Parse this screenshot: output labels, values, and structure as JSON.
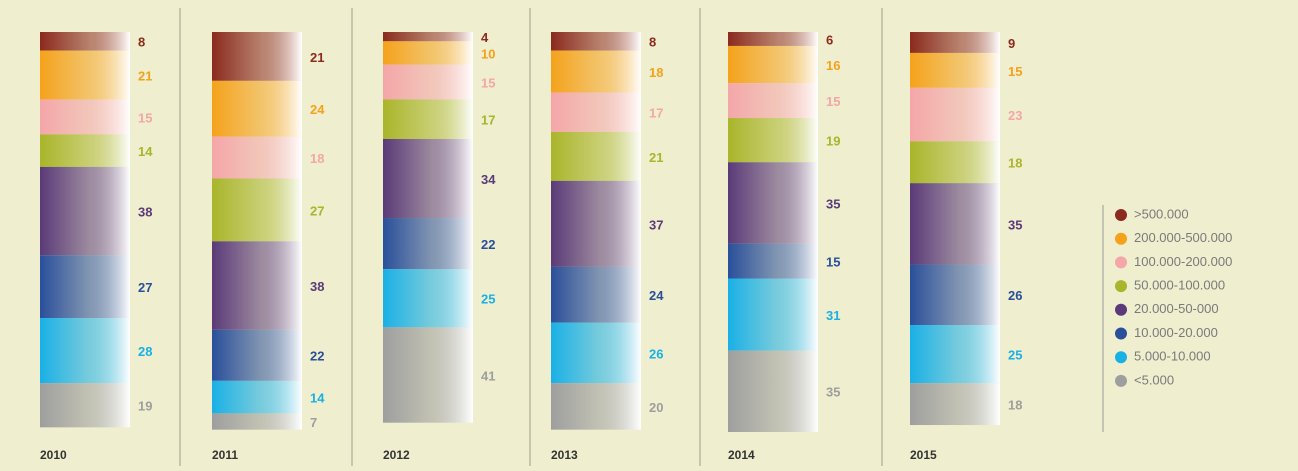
{
  "chart_data": {
    "type": "stacked_bar",
    "categories": [
      "2010",
      "2011",
      "2012",
      "2013",
      "2014",
      "2015"
    ],
    "series": [
      {
        "name": ">500.000",
        "color": "#8b2a1e",
        "values": [
          8,
          21,
          4,
          8,
          6,
          9
        ]
      },
      {
        "name": "200.000-500.000",
        "color": "#f5a21b",
        "values": [
          21,
          24,
          10,
          18,
          16,
          15
        ]
      },
      {
        "name": "100.000-200.000",
        "color": "#f4a6a8",
        "values": [
          15,
          18,
          15,
          17,
          15,
          23
        ]
      },
      {
        "name": "50.000-100.000",
        "color": "#a9b52a",
        "values": [
          14,
          27,
          17,
          21,
          19,
          18
        ]
      },
      {
        "name": "20.000-50-000",
        "color": "#5a3a78",
        "values": [
          38,
          38,
          34,
          37,
          35,
          35
        ]
      },
      {
        "name": "10.000-20.000",
        "color": "#2a4f9a",
        "values": [
          27,
          22,
          22,
          24,
          15,
          26
        ]
      },
      {
        "name": "5.000-10.000",
        "color": "#19b0e6",
        "values": [
          28,
          14,
          25,
          26,
          31,
          25
        ]
      },
      {
        "name": "<5.000",
        "color": "#9e9e9e",
        "values": [
          19,
          7,
          41,
          20,
          35,
          18
        ]
      }
    ]
  }
}
